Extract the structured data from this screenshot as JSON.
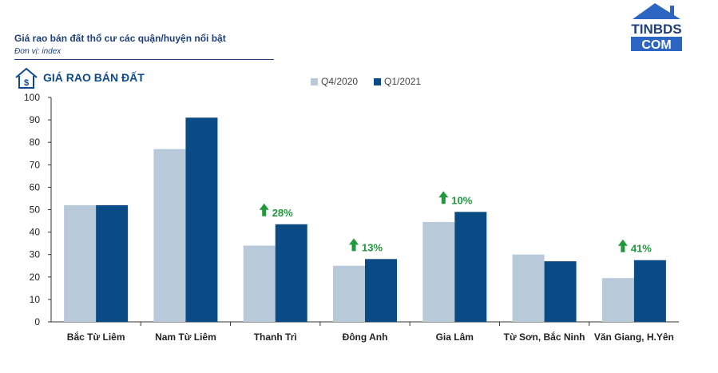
{
  "header": {
    "title": "Giá rao bán đất thổ cư các quận/huyện nổi bật",
    "unit": "Đơn vị: index",
    "section_heading": "GIÁ RAO BÁN ĐẤT",
    "house_icon_symbol": "$"
  },
  "logo": {
    "line1": "TINBDS",
    "line2": "COM"
  },
  "colors": {
    "q4": "#b8c9da",
    "q1": "#0a4b85",
    "growth": "#1e9a3c",
    "heading": "#0d4a8a"
  },
  "chart_data": {
    "type": "bar",
    "categories": [
      "Bắc Từ Liêm",
      "Nam Từ Liêm",
      "Thanh Trì",
      "Đông Anh",
      "Gia Lâm",
      "Từ Sơn, Bắc Ninh",
      "Văn Giang, H.Yên"
    ],
    "series": [
      {
        "name": "Q4/2020",
        "values": [
          52,
          77,
          34,
          25,
          44.5,
          30,
          19.5
        ]
      },
      {
        "name": "Q1/2021",
        "values": [
          52,
          91,
          43.5,
          28,
          49,
          27,
          27.5
        ]
      }
    ],
    "annotations": [
      "",
      "",
      "28%",
      "13%",
      "10%",
      "",
      "41%"
    ],
    "ylim": [
      0,
      100
    ],
    "yticks": [
      "0",
      "10",
      "20",
      "30",
      "40",
      "50",
      "60",
      "70",
      "80",
      "90",
      "100"
    ],
    "grid": false,
    "legend": "top"
  }
}
